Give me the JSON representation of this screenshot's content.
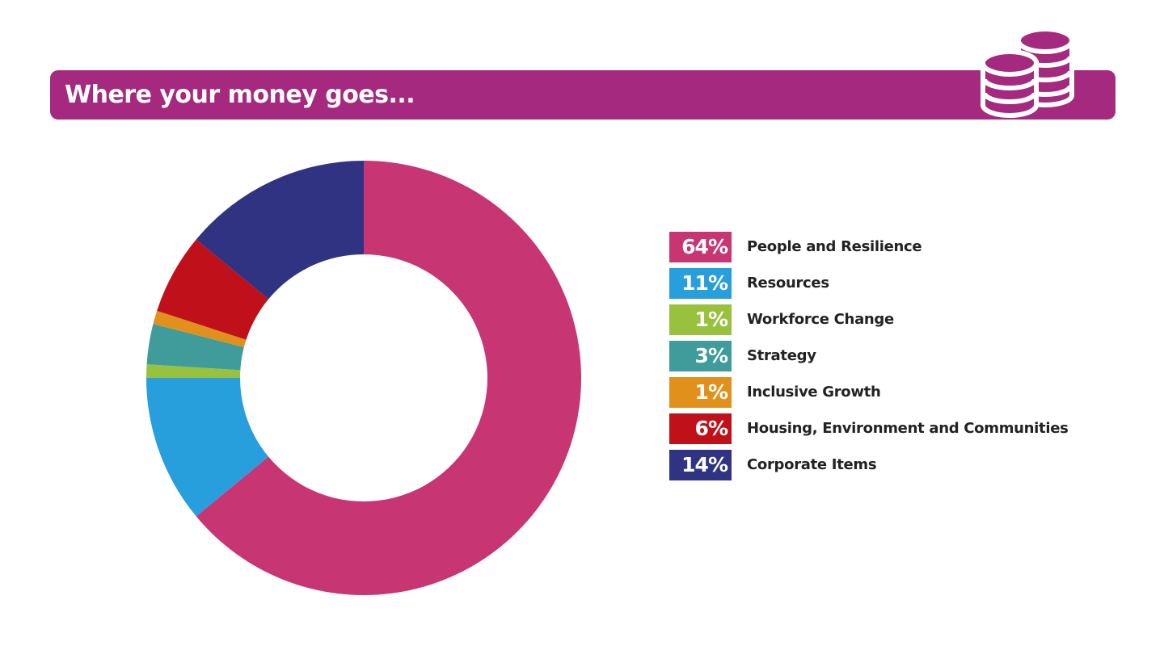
{
  "header": {
    "title": "Where your money goes...",
    "icon": "coins-icon",
    "color": "#a4297f"
  },
  "chart_data": {
    "type": "pie",
    "donut": true,
    "categories": [
      "People and Resilience",
      "Resources",
      "Workforce Change",
      "Strategy",
      "Inclusive Growth",
      "Housing, Environment and Communities",
      "Corporate Items"
    ],
    "values": [
      64,
      11,
      1,
      3,
      1,
      6,
      14
    ],
    "labels": [
      "64%",
      "11%",
      "1%",
      "3%",
      "1%",
      "6%",
      "14%"
    ],
    "colors": [
      "#c83573",
      "#279fdc",
      "#98c13d",
      "#3f9c9b",
      "#e1901c",
      "#c0111a",
      "#303381"
    ],
    "legend": "right",
    "start_angle_deg": 0,
    "direction": "clockwise"
  }
}
